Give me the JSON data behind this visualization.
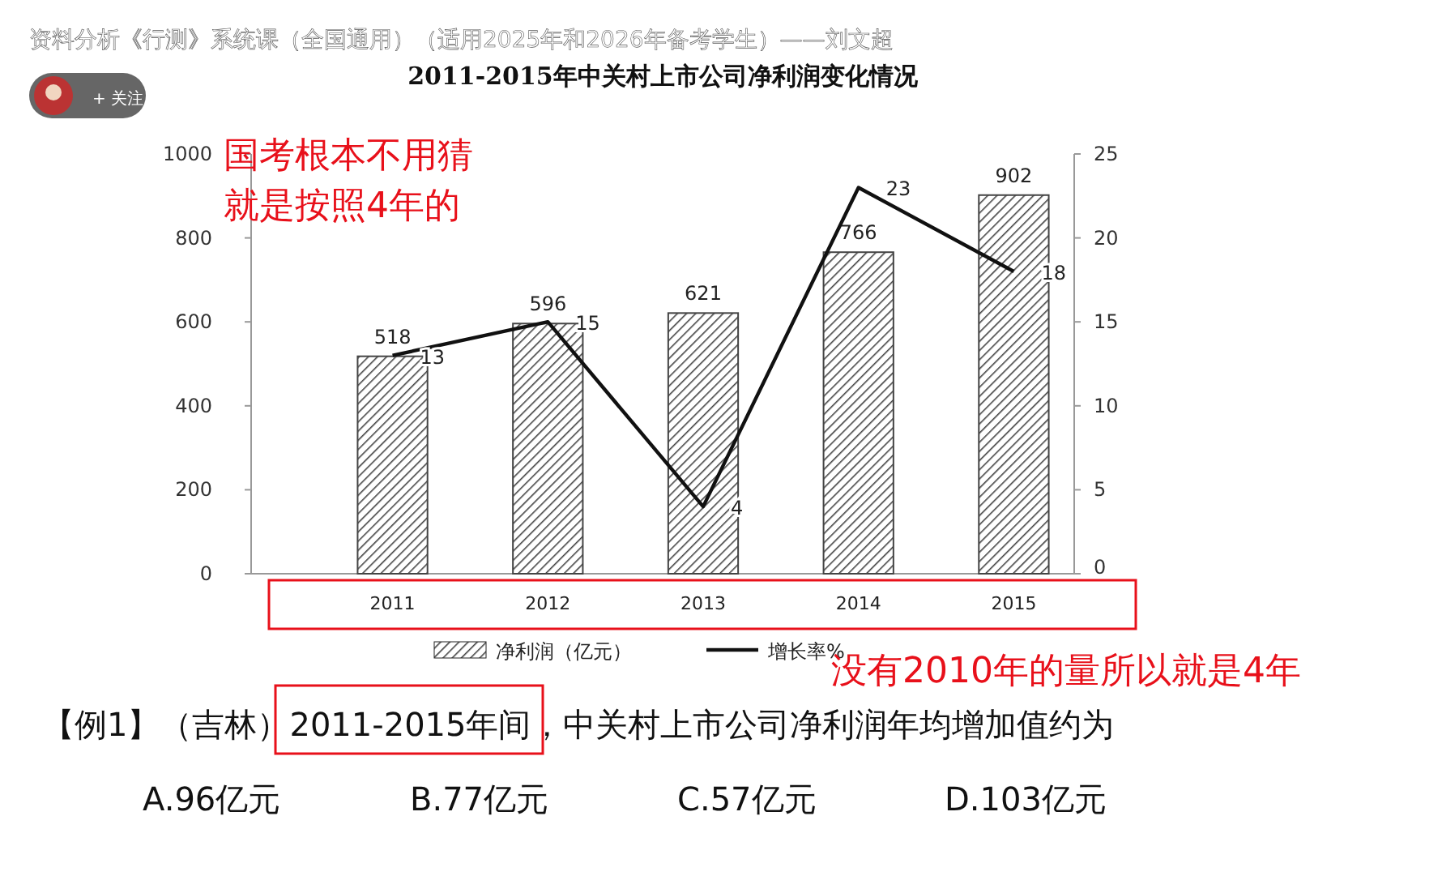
{
  "chart_data": {
    "type": "bar",
    "title": "2011-2015年中关村上市公司净利润变化情况",
    "categories": [
      "2011",
      "2012",
      "2013",
      "2014",
      "2015"
    ],
    "series": [
      {
        "name": "净利润（亿元）",
        "color": "#444444",
        "values": [
          518,
          596,
          621,
          766,
          902
        ]
      },
      {
        "name": "增长率%",
        "type": "line",
        "axis": "y2",
        "color": "#111111",
        "values": [
          13,
          15,
          4,
          23,
          18
        ]
      }
    ],
    "ylim": [
      0,
      1000
    ],
    "yticks": [
      0,
      200,
      400,
      600,
      800,
      1000
    ],
    "y2lim": [
      0,
      25
    ],
    "y2ticks": [
      0,
      5,
      10,
      15,
      20,
      25
    ],
    "data_labels": true,
    "legend": "bottom",
    "marker": "none",
    "line_style": "solid",
    "grid": false,
    "annotations": [
      "资料分析《行测》系统课（全国通用）（适用2025年和2026年备考学生）——刘文超",
      "+ 关注",
      "国考根本不用猜",
      "就是按照4年的",
      "没有2010年的量所以就是4年",
      "【例1】（吉林）2011-2015年间，中关村上市公司净利润年均增加值约为",
      "A.96亿元",
      "B.77亿元",
      "C.57亿元",
      "D.103亿元"
    ]
  }
}
